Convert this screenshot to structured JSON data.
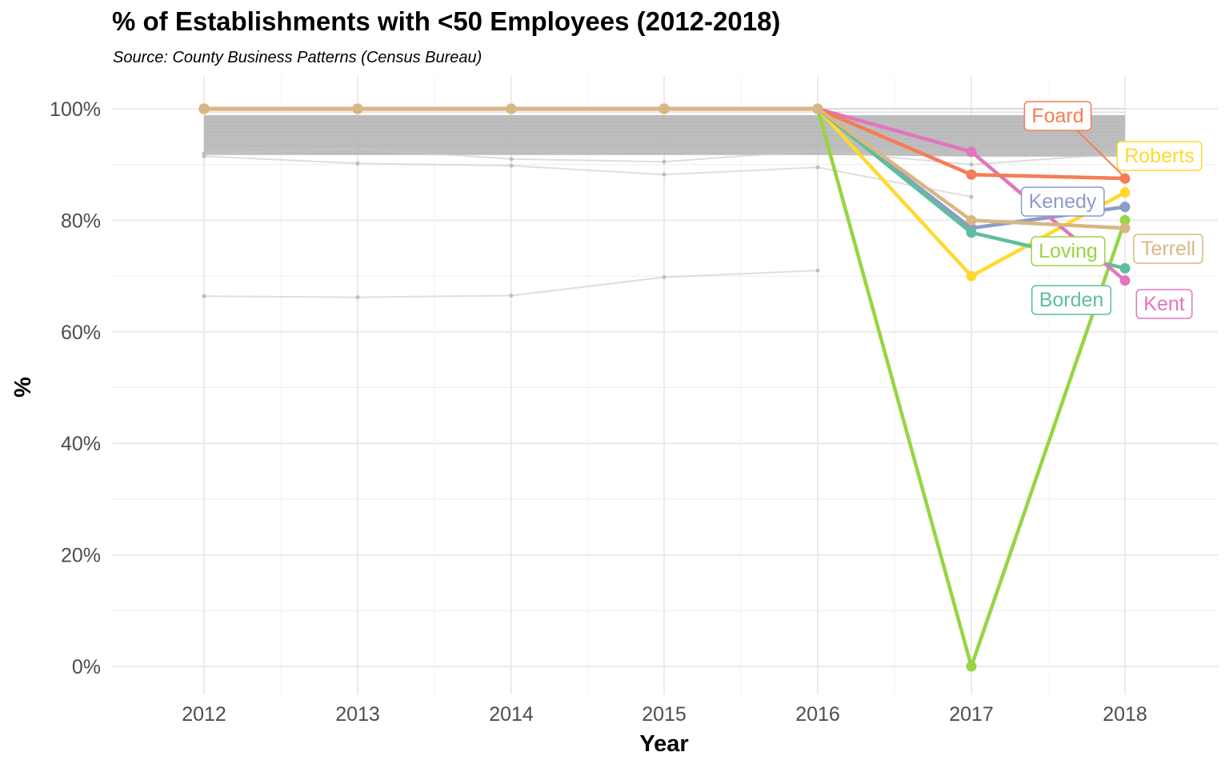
{
  "chart_data": {
    "type": "line",
    "title": "% of Establishments with <50 Employees (2012-2018)",
    "subtitle": "Source: County Business Patterns (Census Bureau)",
    "xlabel": "Year",
    "ylabel": "%",
    "x": [
      2012,
      2013,
      2014,
      2015,
      2016,
      2017,
      2018
    ],
    "x_tick_labels": [
      "2012",
      "2013",
      "2014",
      "2015",
      "2016",
      "2017",
      "2018"
    ],
    "ylim": [
      0,
      100
    ],
    "y_tick_labels": [
      "0%",
      "20%",
      "40%",
      "60%",
      "80%",
      "100%"
    ],
    "y_ticks": [
      0,
      20,
      40,
      60,
      80,
      100
    ],
    "grid": true,
    "legend": "none",
    "highlighted_series": [
      {
        "name": "Foard",
        "color": "#F47D56",
        "values": [
          100,
          100,
          100,
          100,
          100,
          88.2,
          87.5
        ]
      },
      {
        "name": "Roberts",
        "color": "#FFD92F",
        "values": [
          100,
          100,
          100,
          100,
          100,
          70.0,
          85.0
        ]
      },
      {
        "name": "Kenedy",
        "color": "#8C9BCB",
        "values": [
          100,
          100,
          100,
          100,
          100,
          78.6,
          82.4
        ]
      },
      {
        "name": "Loving",
        "color": "#98D444",
        "values": [
          100,
          100,
          100,
          100,
          100,
          0.0,
          80.0
        ]
      },
      {
        "name": "Terrell",
        "color": "#D9B782",
        "values": [
          100,
          100,
          100,
          100,
          100,
          80.0,
          78.6
        ]
      },
      {
        "name": "Borden",
        "color": "#5DBE9E",
        "values": [
          100,
          100,
          100,
          100,
          100,
          77.8,
          71.4
        ]
      },
      {
        "name": "Kent",
        "color": "#E176BE",
        "values": [
          100,
          100,
          100,
          100,
          100,
          92.3,
          69.2
        ]
      }
    ],
    "background_series_color": "#B3B3B3",
    "background_series_note_range": [
      92,
      100
    ],
    "background_series": [
      {
        "values": [
          66.4,
          66.2,
          66.5,
          69.8,
          71.0,
          null,
          null
        ]
      },
      {
        "values": [
          91.5,
          90.2,
          89.8,
          88.2,
          89.5,
          84.2,
          null
        ]
      },
      {
        "values": [
          92.0,
          92.8,
          91.0,
          90.5,
          92.5,
          90.0,
          92.0
        ]
      }
    ]
  }
}
